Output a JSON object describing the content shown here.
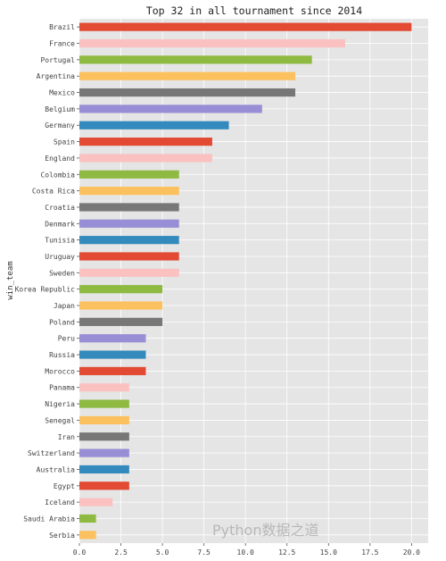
{
  "chart_data": {
    "type": "bar",
    "orientation": "horizontal",
    "title": "Top 32 in all tournament since 2014",
    "xlabel": "",
    "ylabel": "win_team",
    "xlim": [
      0,
      21
    ],
    "xticks": [
      "0.0",
      "2.5",
      "5.0",
      "7.5",
      "10.0",
      "12.5",
      "15.0",
      "17.5",
      "20.0"
    ],
    "grid": true,
    "categories": [
      "Brazil",
      "France",
      "Portugal",
      "Argentina",
      "Mexico",
      "Belgium",
      "Germany",
      "Spain",
      "England",
      "Colombia",
      "Costa Rica",
      "Croatia",
      "Denmark",
      "Tunisia",
      "Uruguay",
      "Sweden",
      "Korea Republic",
      "Japan",
      "Poland",
      "Peru",
      "Russia",
      "Morocco",
      "Panama",
      "Nigeria",
      "Senegal",
      "Iran",
      "Switzerland",
      "Australia",
      "Egypt",
      "Iceland",
      "Saudi Arabia",
      "Serbia"
    ],
    "values": [
      20,
      16,
      14,
      13,
      13,
      11,
      9,
      8,
      8,
      6,
      6,
      6,
      6,
      6,
      6,
      6,
      5,
      5,
      5,
      4,
      4,
      4,
      3,
      3,
      3,
      3,
      3,
      3,
      3,
      2,
      1,
      1
    ],
    "colors": [
      "#E24A33",
      "#FBC1C1",
      "#8EBA42",
      "#FBC15E",
      "#777777",
      "#988ED5",
      "#348ABD"
    ]
  },
  "watermark": "Python数据之道"
}
